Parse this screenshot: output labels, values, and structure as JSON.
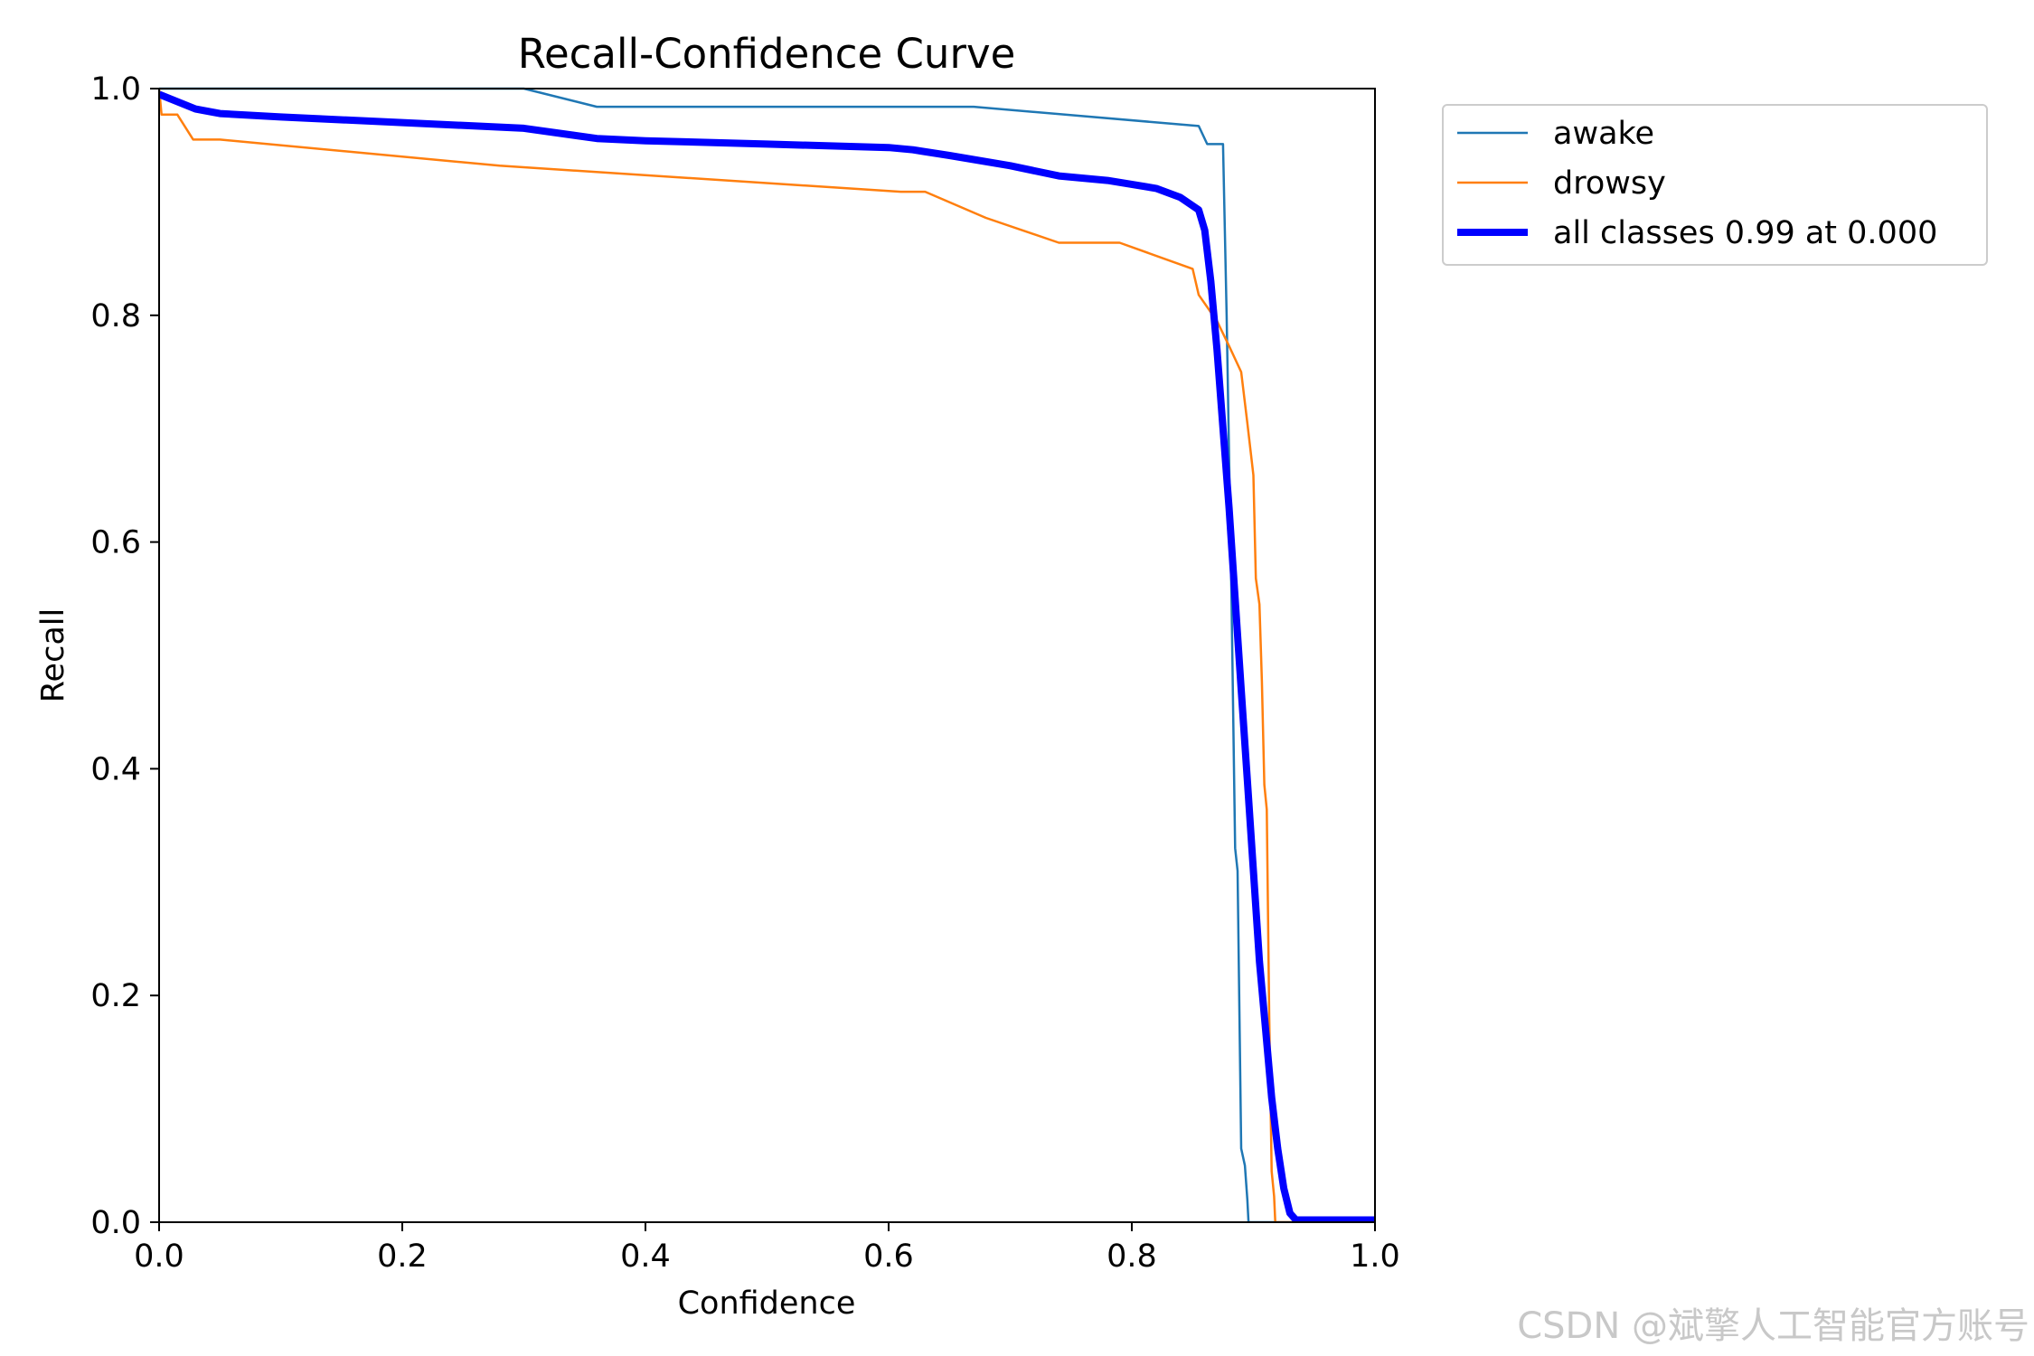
{
  "chart_data": {
    "type": "line",
    "title": "Recall-Confidence Curve",
    "xlabel": "Confidence",
    "ylabel": "Recall",
    "xlim": [
      0,
      1
    ],
    "ylim": [
      0,
      1
    ],
    "x_ticks": [
      "0.0",
      "0.2",
      "0.4",
      "0.6",
      "0.8",
      "1.0"
    ],
    "y_ticks": [
      "0.0",
      "0.2",
      "0.4",
      "0.6",
      "0.8",
      "1.0"
    ],
    "grid": false,
    "legend_position": "outside-upper-right",
    "series": [
      {
        "name": "awake",
        "color": "#1f77b4",
        "linewidth": "thin",
        "points": [
          [
            0,
            1.0
          ],
          [
            0.3,
            1.0
          ],
          [
            0.36,
            0.984
          ],
          [
            0.67,
            0.984
          ],
          [
            0.855,
            0.967
          ],
          [
            0.862,
            0.951
          ],
          [
            0.875,
            0.951
          ],
          [
            0.878,
            0.8
          ],
          [
            0.882,
            0.55
          ],
          [
            0.885,
            0.33
          ],
          [
            0.887,
            0.31
          ],
          [
            0.89,
            0.065
          ],
          [
            0.893,
            0.05
          ],
          [
            0.895,
            0.02
          ],
          [
            0.896,
            0.0
          ],
          [
            1.0,
            0.0
          ]
        ]
      },
      {
        "name": "drowsy",
        "color": "#ff7f0e",
        "linewidth": "thin",
        "points": [
          [
            0,
            1.0
          ],
          [
            0.002,
            0.977
          ],
          [
            0.015,
            0.977
          ],
          [
            0.028,
            0.955
          ],
          [
            0.05,
            0.955
          ],
          [
            0.28,
            0.932
          ],
          [
            0.61,
            0.909
          ],
          [
            0.63,
            0.909
          ],
          [
            0.68,
            0.886
          ],
          [
            0.74,
            0.864
          ],
          [
            0.79,
            0.864
          ],
          [
            0.85,
            0.841
          ],
          [
            0.855,
            0.818
          ],
          [
            0.87,
            0.795
          ],
          [
            0.88,
            0.773
          ],
          [
            0.89,
            0.75
          ],
          [
            0.895,
            0.705
          ],
          [
            0.9,
            0.659
          ],
          [
            0.902,
            0.568
          ],
          [
            0.905,
            0.545
          ],
          [
            0.907,
            0.477
          ],
          [
            0.909,
            0.386
          ],
          [
            0.911,
            0.364
          ],
          [
            0.913,
            0.182
          ],
          [
            0.915,
            0.045
          ],
          [
            0.917,
            0.023
          ],
          [
            0.918,
            0.0
          ],
          [
            1.0,
            0.0
          ]
        ]
      },
      {
        "name": "all classes 0.99 at 0.000",
        "color": "#0000ff",
        "linewidth": "thick",
        "points": [
          [
            0,
            0.995
          ],
          [
            0.03,
            0.982
          ],
          [
            0.05,
            0.978
          ],
          [
            0.1,
            0.975
          ],
          [
            0.2,
            0.97
          ],
          [
            0.3,
            0.965
          ],
          [
            0.36,
            0.956
          ],
          [
            0.4,
            0.954
          ],
          [
            0.5,
            0.951
          ],
          [
            0.6,
            0.948
          ],
          [
            0.62,
            0.946
          ],
          [
            0.65,
            0.941
          ],
          [
            0.7,
            0.932
          ],
          [
            0.74,
            0.923
          ],
          [
            0.78,
            0.919
          ],
          [
            0.82,
            0.912
          ],
          [
            0.84,
            0.904
          ],
          [
            0.855,
            0.893
          ],
          [
            0.86,
            0.875
          ],
          [
            0.865,
            0.83
          ],
          [
            0.87,
            0.77
          ],
          [
            0.875,
            0.7
          ],
          [
            0.88,
            0.63
          ],
          [
            0.885,
            0.55
          ],
          [
            0.89,
            0.47
          ],
          [
            0.895,
            0.39
          ],
          [
            0.9,
            0.31
          ],
          [
            0.905,
            0.23
          ],
          [
            0.91,
            0.17
          ],
          [
            0.915,
            0.11
          ],
          [
            0.92,
            0.065
          ],
          [
            0.925,
            0.03
          ],
          [
            0.93,
            0.008
          ],
          [
            0.935,
            0.002
          ],
          [
            1.0,
            0.002
          ]
        ]
      }
    ]
  },
  "watermark": "CSDN @斌擎人工智能官方账号"
}
